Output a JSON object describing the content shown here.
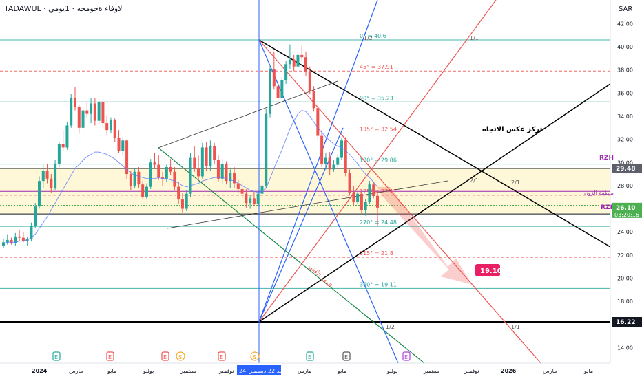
{
  "header": {
    "symbol": "TADAWUL",
    "name": "· لاوفاء ةحومحه ·",
    "interval": "1يومي"
  },
  "currency": "SAR",
  "chart_data": {
    "type": "candlestick",
    "y_axis": {
      "range": [
        12.6,
        43.0
      ],
      "ticks": [
        14,
        16,
        18,
        20,
        22,
        24,
        26,
        28,
        30,
        32,
        34,
        36,
        38,
        40,
        42
      ]
    },
    "x_axis_labels": [
      "2024",
      "مارس",
      "مايو",
      "يوليو",
      "سبتمبر",
      "نوفمبر",
      "الأحد 22 ديسمبر '24",
      "مارس",
      "مايو",
      "يوليو",
      "سبتمبر",
      "نوفمبر",
      "2026",
      "مارس",
      "مايو"
    ],
    "candles": [
      [
        22.8,
        23.4,
        22.6,
        23.1
      ],
      [
        23.1,
        23.8,
        22.9,
        23.3
      ],
      [
        23.3,
        23.5,
        22.9,
        23.0
      ],
      [
        23.0,
        23.9,
        22.8,
        23.6
      ],
      [
        23.6,
        24.2,
        23.2,
        23.5
      ],
      [
        23.5,
        24.0,
        23.1,
        23.2
      ],
      [
        23.2,
        23.6,
        22.8,
        23.4
      ],
      [
        23.4,
        24.8,
        23.2,
        24.5
      ],
      [
        24.5,
        26.5,
        24.3,
        26.2
      ],
      [
        26.2,
        28.8,
        26.0,
        28.4
      ],
      [
        28.4,
        29.8,
        27.8,
        29.3
      ],
      [
        29.3,
        29.9,
        28.2,
        28.6
      ],
      [
        28.6,
        29.0,
        27.4,
        27.8
      ],
      [
        27.8,
        30.2,
        27.6,
        29.9
      ],
      [
        29.9,
        31.8,
        29.6,
        31.6
      ],
      [
        31.6,
        32.8,
        31.0,
        31.3
      ],
      [
        31.3,
        33.5,
        31.1,
        33.2
      ],
      [
        33.2,
        35.9,
        33.0,
        35.6
      ],
      [
        35.6,
        36.5,
        34.5,
        34.8
      ],
      [
        34.8,
        35.0,
        32.5,
        33.0
      ],
      [
        33.0,
        34.8,
        32.6,
        34.5
      ],
      [
        34.5,
        35.2,
        33.8,
        34.2
      ],
      [
        34.2,
        35.6,
        33.4,
        35.1
      ],
      [
        35.1,
        35.6,
        33.2,
        33.6
      ],
      [
        33.6,
        35.4,
        33.3,
        35.2
      ],
      [
        35.2,
        35.4,
        33.0,
        33.4
      ],
      [
        33.4,
        34.0,
        32.4,
        32.8
      ],
      [
        32.8,
        33.9,
        32.5,
        33.7
      ],
      [
        33.7,
        33.8,
        31.8,
        32.1
      ],
      [
        32.1,
        32.8,
        30.8,
        31.0
      ],
      [
        31.0,
        32.2,
        30.6,
        31.9
      ],
      [
        31.9,
        32.0,
        28.6,
        29.0
      ],
      [
        29.0,
        29.3,
        27.6,
        28.0
      ],
      [
        28.0,
        29.5,
        27.8,
        29.2
      ],
      [
        29.2,
        29.6,
        27.8,
        28.1
      ],
      [
        28.1,
        28.4,
        26.8,
        27.0
      ],
      [
        27.0,
        28.2,
        26.8,
        27.9
      ],
      [
        27.9,
        30.3,
        27.7,
        30.0
      ],
      [
        30.0,
        30.8,
        29.5,
        29.8
      ],
      [
        29.8,
        30.6,
        28.5,
        28.7
      ],
      [
        28.7,
        29.2,
        28.0,
        28.6
      ],
      [
        28.6,
        29.8,
        28.3,
        29.6
      ],
      [
        29.6,
        30.3,
        28.9,
        29.2
      ],
      [
        29.2,
        29.6,
        27.6,
        27.9
      ],
      [
        27.9,
        28.3,
        26.4,
        26.8
      ],
      [
        26.8,
        27.4,
        25.7,
        26.0
      ],
      [
        26.0,
        27.6,
        25.8,
        27.3
      ],
      [
        27.3,
        30.8,
        27.0,
        30.4
      ],
      [
        30.4,
        31.4,
        29.2,
        29.5
      ],
      [
        29.5,
        30.6,
        28.4,
        28.8
      ],
      [
        28.8,
        31.7,
        28.6,
        31.3
      ],
      [
        31.3,
        31.8,
        29.3,
        29.7
      ],
      [
        29.7,
        31.9,
        29.3,
        31.4
      ],
      [
        31.4,
        31.7,
        29.9,
        30.2
      ],
      [
        30.2,
        30.6,
        28.3,
        28.6
      ],
      [
        28.6,
        30.3,
        28.2,
        29.9
      ],
      [
        29.9,
        30.1,
        28.1,
        28.4
      ],
      [
        28.4,
        29.4,
        27.8,
        29.1
      ],
      [
        29.1,
        29.6,
        27.8,
        28.2
      ],
      [
        28.2,
        28.5,
        27.4,
        27.7
      ],
      [
        27.7,
        28.3,
        26.9,
        27.3
      ],
      [
        27.3,
        27.7,
        26.1,
        26.5
      ],
      [
        26.5,
        27.2,
        26.0,
        26.9
      ],
      [
        26.9,
        27.5,
        26.2,
        26.4
      ],
      [
        26.4,
        27.6,
        26.2,
        27.3
      ],
      [
        27.3,
        28.4,
        27.1,
        28.0
      ],
      [
        28.0,
        34.6,
        27.8,
        34.2
      ],
      [
        34.2,
        38.4,
        33.9,
        38.1
      ],
      [
        38.1,
        39.6,
        36.3,
        36.6
      ],
      [
        36.6,
        37.0,
        35.3,
        35.6
      ],
      [
        35.6,
        37.4,
        35.4,
        37.1
      ],
      [
        37.1,
        38.8,
        36.8,
        38.5
      ],
      [
        38.5,
        40.2,
        38.1,
        38.9
      ],
      [
        38.9,
        39.3,
        37.9,
        38.3
      ],
      [
        38.3,
        39.6,
        38.0,
        39.3
      ],
      [
        39.3,
        40.1,
        38.8,
        39.1
      ],
      [
        39.1,
        39.6,
        37.5,
        37.8
      ],
      [
        37.8,
        38.3,
        35.9,
        36.2
      ],
      [
        36.2,
        36.6,
        34.4,
        34.7
      ],
      [
        34.7,
        35.1,
        32.0,
        32.3
      ],
      [
        32.3,
        32.8,
        29.6,
        29.9
      ],
      [
        29.9,
        30.8,
        29.4,
        30.4
      ],
      [
        30.4,
        30.9,
        28.9,
        29.4
      ],
      [
        29.4,
        30.2,
        29.2,
        29.8
      ],
      [
        29.8,
        30.7,
        29.6,
        30.4
      ],
      [
        30.4,
        32.1,
        30.2,
        31.9
      ],
      [
        31.9,
        32.2,
        28.8,
        29.1
      ],
      [
        29.1,
        29.4,
        27.2,
        27.4
      ],
      [
        27.4,
        28.0,
        26.3,
        26.6
      ],
      [
        26.6,
        27.5,
        26.4,
        27.3
      ],
      [
        27.3,
        27.6,
        25.6,
        25.9
      ],
      [
        25.9,
        26.8,
        25.4,
        26.6
      ],
      [
        26.6,
        28.4,
        26.4,
        28.1
      ],
      [
        28.1,
        28.3,
        26.9,
        27.1
      ],
      [
        27.1,
        27.6,
        24.5,
        26.1
      ]
    ],
    "ma": [
      23.0,
      23.1,
      23.1,
      23.1,
      23.2,
      23.2,
      23.3,
      23.5,
      23.8,
      24.3,
      24.8,
      25.3,
      25.9,
      26.5,
      27.1,
      27.7,
      28.3,
      28.9,
      29.5,
      29.8,
      30.2,
      30.5,
      30.7,
      30.9,
      30.9,
      30.8,
      30.7,
      30.5,
      30.3,
      30.0,
      29.7,
      29.4,
      29.1,
      28.9,
      28.8,
      28.7,
      28.6,
      28.6,
      28.6,
      28.7,
      28.6,
      28.6,
      28.5,
      28.4,
      28.2,
      28.0,
      27.9,
      28.0,
      28.1,
      28.2,
      28.4,
      28.5,
      28.6,
      28.7,
      28.7,
      28.7,
      28.6,
      28.5,
      28.4,
      28.2,
      28.0,
      27.8,
      27.6,
      27.5,
      27.4,
      27.5,
      27.8,
      28.6,
      29.5,
      30.3,
      31.1,
      32.0,
      32.9,
      33.6,
      34.2,
      34.5,
      34.4,
      34.0,
      33.5,
      33.0,
      32.6,
      32.2,
      31.9,
      31.6,
      31.4,
      31.3,
      31.0,
      30.7,
      30.3,
      29.9,
      29.4,
      29.0,
      28.7,
      28.3,
      27.9
    ],
    "last_price": "26.10",
    "countdown": "03:20:16",
    "levels": [
      {
        "value": 40.6,
        "label": "0° = 40.6",
        "color": "#26a69a"
      },
      {
        "value": 37.91,
        "label": "45° = 37.91",
        "color": "#ef5350"
      },
      {
        "value": 35.23,
        "label": "90° = 35.23",
        "color": "#26a69a"
      },
      {
        "value": 32.54,
        "label": "135° = 32.54",
        "color": "#ef5350"
      },
      {
        "value": 29.86,
        "label": "180° = 29.86",
        "color": "#26a69a"
      },
      {
        "value": 27.17,
        "label": "225° = 27.17",
        "color": "#ef5350"
      },
      {
        "value": 24.48,
        "label": "270° = 24.48",
        "color": "#26a69a"
      },
      {
        "value": 21.8,
        "label": "315° = 21.8",
        "color": "#ef5350"
      },
      {
        "value": 19.11,
        "label": "360° = 19.11",
        "color": "#26a69a"
      }
    ],
    "zone": {
      "high": 29.48,
      "low": 25.55,
      "high_label": "RZH",
      "low_label": "RZL",
      "name": "منطقة الزون"
    },
    "support_level": 16.22,
    "target": "19.10",
    "annotation_trend": "تركز عكس الاتجاه",
    "annotation_fan": "الدعم الأفقي",
    "fan_labels": [
      "1/2",
      "1/1",
      "2/1",
      "2/1",
      "1/2",
      "1/1"
    ],
    "axis_tags": {
      "rzh": "29.48",
      "support": "16.22"
    },
    "event_markers": [
      "E",
      "E",
      "E",
      "S",
      "E",
      "S",
      "E",
      "E",
      "E"
    ]
  },
  "colors": {
    "up": "#26a69a",
    "down": "#ef5350",
    "ma": "#5b7cff",
    "zone": "#fff8d8",
    "accent": "#2962ff",
    "target": "#e91e63"
  }
}
